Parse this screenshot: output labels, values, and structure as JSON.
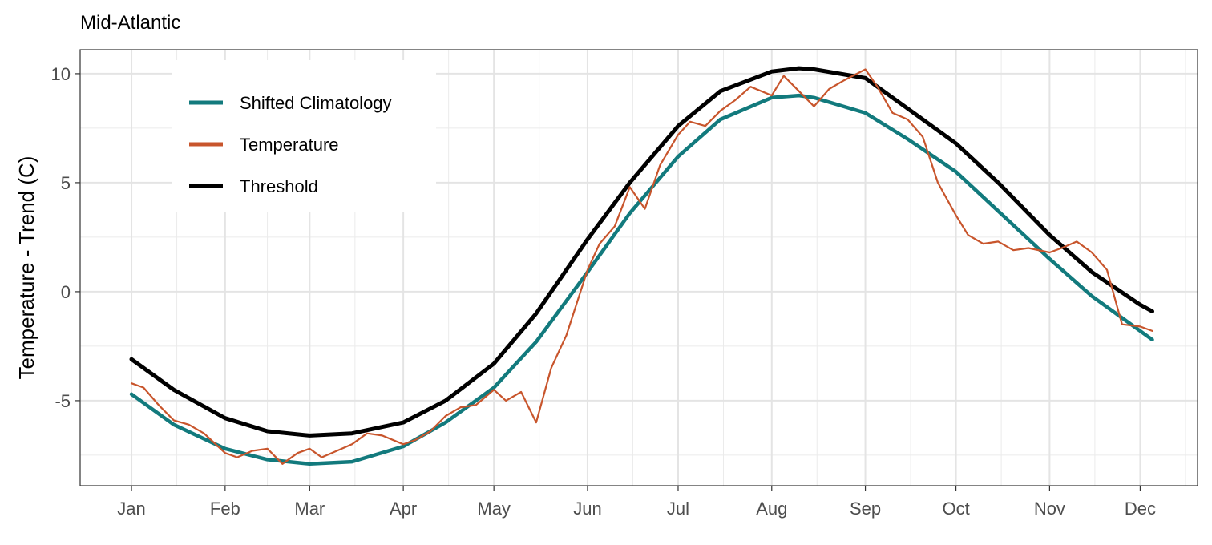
{
  "chart_data": {
    "type": "line",
    "title": "Mid-Atlantic",
    "xlabel": "",
    "ylabel": "Temperature - Trend (C)",
    "x_tick_labels": [
      "Jan",
      "Feb",
      "Mar",
      "Apr",
      "May",
      "Jun",
      "Jul",
      "Aug",
      "Sep",
      "Oct",
      "Nov",
      "Dec"
    ],
    "y_ticks": [
      10,
      5,
      0,
      -5
    ],
    "y_tick_labels": [
      "10",
      "5",
      "0",
      "-5"
    ],
    "xlim": [
      "2000-12-15",
      "2001-12-20"
    ],
    "ylim": [
      -8.9,
      11.1
    ],
    "grid": true,
    "legend_position": "top-left",
    "series": [
      {
        "name": "Shifted Climatology",
        "color": "#127a7d",
        "x": [
          "2001-01-01",
          "2001-01-15",
          "2001-02-01",
          "2001-02-15",
          "2001-03-01",
          "2001-03-15",
          "2001-04-01",
          "2001-04-15",
          "2001-05-01",
          "2001-05-15",
          "2001-06-01",
          "2001-06-15",
          "2001-07-01",
          "2001-07-15",
          "2001-08-01",
          "2001-08-10",
          "2001-08-15",
          "2001-09-01",
          "2001-09-15",
          "2001-10-01",
          "2001-10-15",
          "2001-11-01",
          "2001-11-15",
          "2001-12-01",
          "2001-12-05"
        ],
        "values": [
          -4.7,
          -6.1,
          -7.2,
          -7.7,
          -7.9,
          -7.8,
          -7.1,
          -6.0,
          -4.4,
          -2.3,
          0.9,
          3.6,
          6.2,
          7.9,
          8.9,
          9.0,
          8.9,
          8.2,
          7.0,
          5.5,
          3.7,
          1.5,
          -0.2,
          -1.8,
          -2.2
        ]
      },
      {
        "name": "Temperature",
        "color": "#c8552c",
        "x": [
          "2001-01-01",
          "2001-01-05",
          "2001-01-10",
          "2001-01-15",
          "2001-01-20",
          "2001-01-25",
          "2001-02-01",
          "2001-02-05",
          "2001-02-10",
          "2001-02-15",
          "2001-02-20",
          "2001-02-25",
          "2001-03-01",
          "2001-03-05",
          "2001-03-10",
          "2001-03-15",
          "2001-03-20",
          "2001-03-25",
          "2001-04-01",
          "2001-04-05",
          "2001-04-10",
          "2001-04-15",
          "2001-04-20",
          "2001-04-25",
          "2001-05-01",
          "2001-05-05",
          "2001-05-10",
          "2001-05-15",
          "2001-05-20",
          "2001-05-25",
          "2001-06-01",
          "2001-06-05",
          "2001-06-10",
          "2001-06-15",
          "2001-06-20",
          "2001-06-25",
          "2001-07-01",
          "2001-07-05",
          "2001-07-10",
          "2001-07-15",
          "2001-07-20",
          "2001-07-25",
          "2001-08-01",
          "2001-08-05",
          "2001-08-10",
          "2001-08-15",
          "2001-08-20",
          "2001-08-25",
          "2001-09-01",
          "2001-09-05",
          "2001-09-10",
          "2001-09-15",
          "2001-09-20",
          "2001-09-25",
          "2001-10-01",
          "2001-10-05",
          "2001-10-10",
          "2001-10-15",
          "2001-10-20",
          "2001-10-25",
          "2001-11-01",
          "2001-11-05",
          "2001-11-10",
          "2001-11-15",
          "2001-11-20",
          "2001-11-25",
          "2001-12-01",
          "2001-12-05"
        ],
        "values": [
          -4.2,
          -4.4,
          -5.2,
          -5.9,
          -6.1,
          -6.5,
          -7.4,
          -7.6,
          -7.3,
          -7.2,
          -7.9,
          -7.4,
          -7.2,
          -7.6,
          -7.3,
          -7.0,
          -6.5,
          -6.6,
          -7.0,
          -6.8,
          -6.4,
          -5.7,
          -5.3,
          -5.2,
          -4.5,
          -5.0,
          -4.6,
          -6.0,
          -3.5,
          -2.0,
          1.0,
          2.2,
          3.0,
          4.8,
          3.8,
          5.8,
          7.2,
          7.8,
          7.6,
          8.3,
          8.8,
          9.4,
          9.0,
          9.9,
          9.2,
          8.5,
          9.3,
          9.7,
          10.2,
          9.4,
          8.2,
          7.9,
          7.1,
          5.0,
          3.5,
          2.6,
          2.2,
          2.3,
          1.9,
          2.0,
          1.8,
          2.0,
          2.3,
          1.8,
          1.0,
          -1.5,
          -1.6,
          -1.8
        ]
      },
      {
        "name": "Threshold",
        "color": "#000000",
        "x": [
          "2001-01-01",
          "2001-01-15",
          "2001-02-01",
          "2001-02-15",
          "2001-03-01",
          "2001-03-15",
          "2001-04-01",
          "2001-04-15",
          "2001-05-01",
          "2001-05-15",
          "2001-06-01",
          "2001-06-15",
          "2001-07-01",
          "2001-07-15",
          "2001-08-01",
          "2001-08-10",
          "2001-08-15",
          "2001-09-01",
          "2001-09-15",
          "2001-10-01",
          "2001-10-15",
          "2001-11-01",
          "2001-11-15",
          "2001-12-01",
          "2001-12-05"
        ],
        "values": [
          -3.1,
          -4.5,
          -5.8,
          -6.4,
          -6.6,
          -6.5,
          -6.0,
          -5.0,
          -3.3,
          -1.0,
          2.4,
          5.0,
          7.6,
          9.2,
          10.1,
          10.25,
          10.2,
          9.8,
          8.4,
          6.8,
          5.0,
          2.6,
          0.9,
          -0.6,
          -0.9
        ]
      }
    ]
  }
}
